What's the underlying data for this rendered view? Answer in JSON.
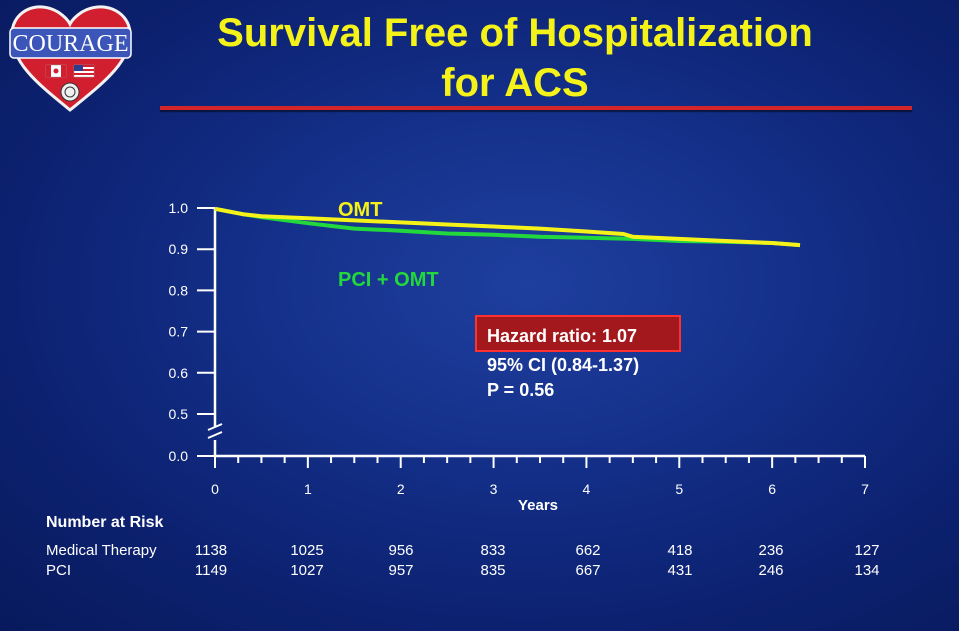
{
  "logo": {
    "text": "COURAGE",
    "colors": {
      "heart": "#d11f2f",
      "banner": "#3b56b8"
    }
  },
  "title": {
    "line1": "Survival Free of Hospitalization",
    "line2": "for ACS"
  },
  "chart_data": {
    "type": "line",
    "title": "",
    "xlabel": "Years",
    "ylabel": "",
    "xlim": [
      0,
      7
    ],
    "ylim": [
      0.0,
      1.0
    ],
    "axis_break": true,
    "x_ticks": [
      0,
      1,
      2,
      3,
      4,
      5,
      6,
      7
    ],
    "y_ticks": [
      "0.0",
      "0.5",
      "0.6",
      "0.7",
      "0.8",
      "0.9",
      "1.0"
    ],
    "series": [
      {
        "name": "OMT",
        "color": "#f5f21a",
        "x": [
          0,
          0.3,
          0.5,
          1.0,
          1.5,
          2.0,
          2.5,
          3.0,
          3.5,
          4.0,
          4.4,
          4.5,
          5.0,
          5.5,
          6.0,
          6.3
        ],
        "y": [
          0.998,
          0.985,
          0.98,
          0.975,
          0.97,
          0.965,
          0.96,
          0.955,
          0.95,
          0.943,
          0.937,
          0.93,
          0.925,
          0.92,
          0.915,
          0.91
        ]
      },
      {
        "name": "PCI + OMT",
        "color": "#22d83c",
        "x": [
          0,
          0.3,
          0.5,
          1.0,
          1.5,
          2.0,
          2.5,
          3.0,
          3.5,
          4.0,
          4.5,
          5.0,
          5.5,
          6.0,
          6.3
        ],
        "y": [
          0.998,
          0.985,
          0.978,
          0.963,
          0.95,
          0.945,
          0.938,
          0.935,
          0.93,
          0.928,
          0.925,
          0.92,
          0.918,
          0.915,
          0.91
        ]
      }
    ],
    "annotation": {
      "hazard_ratio": "Hazard ratio: 1.07",
      "ci": "95% CI (0.84-1.37)",
      "p_value": "P = 0.56"
    }
  },
  "risk_table": {
    "heading": "Number at Risk",
    "rows": [
      {
        "label": "Medical Therapy",
        "values": [
          "1138",
          "1025",
          "956",
          "833",
          "662",
          "418",
          "236",
          "127"
        ]
      },
      {
        "label": "PCI",
        "values": [
          "1149",
          "1027",
          "957",
          "835",
          "667",
          "431",
          "246",
          "134"
        ]
      }
    ]
  }
}
